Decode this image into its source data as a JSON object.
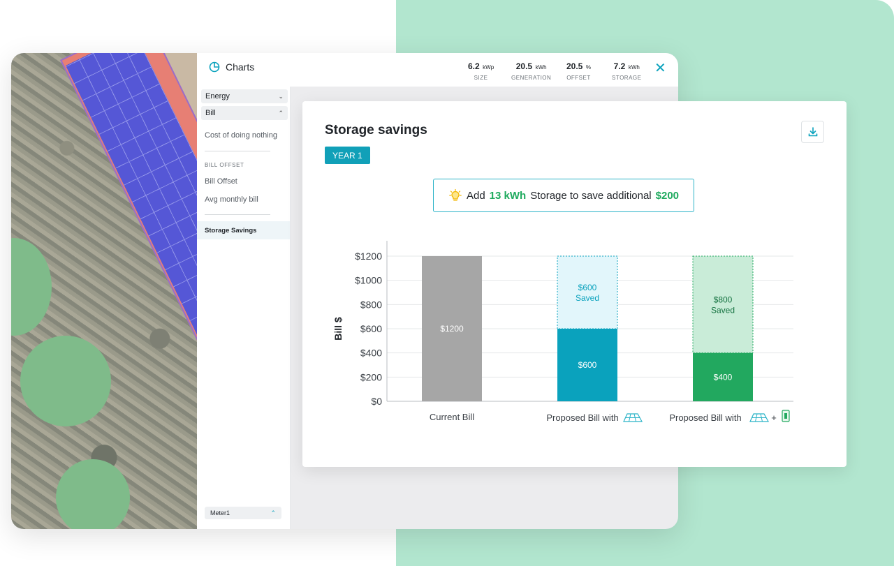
{
  "sidebar": {
    "title": "Charts",
    "sections": [
      {
        "label": "Energy",
        "expanded": false
      },
      {
        "label": "Bill",
        "expanded": true
      }
    ],
    "items": {
      "cost_of_doing_nothing": "Cost of doing nothing",
      "bill_offset_header": "BILL OFFSET",
      "bill_offset": "Bill Offset",
      "avg_monthly_bill": "Avg monthly bill",
      "storage_savings": "Storage Savings"
    },
    "meter": "Meter1"
  },
  "stats": [
    {
      "value": "6.2",
      "unit": "kWp",
      "label": "SIZE"
    },
    {
      "value": "20.5",
      "unit": "kWh",
      "label": "GENERATION"
    },
    {
      "value": "20.5",
      "unit": "%",
      "label": "OFFSET"
    },
    {
      "value": "7.2",
      "unit": "kWh",
      "label": "STORAGE"
    }
  ],
  "card": {
    "title": "Storage savings",
    "badge": "YEAR 1",
    "tip": {
      "prefix": "Add",
      "storage": "13 kWh",
      "middle": "Storage to save additional",
      "amount": "$200"
    }
  },
  "colors": {
    "accent": "#11a0b8",
    "green": "#1faa5e",
    "current_bill": "#a6a6a6",
    "solar_bill": "#0aa2bd",
    "solar_saved": "#e2f6fb",
    "storage_bill": "#22a85f",
    "storage_saved": "#c9ecd8"
  },
  "chart_data": {
    "type": "bar",
    "ylabel": "Bill $",
    "ylim": [
      0,
      1200
    ],
    "y_ticks": [
      "$0",
      "$200",
      "$400",
      "$600",
      "$800",
      "$1000",
      "$1200"
    ],
    "y_tick_values": [
      0,
      200,
      400,
      600,
      800,
      1000,
      1200
    ],
    "categories": [
      {
        "label": "Current Bill",
        "icons": []
      },
      {
        "label": "Proposed Bill with",
        "icons": [
          "solar-panel-icon"
        ]
      },
      {
        "label": "Proposed Bill with",
        "icons": [
          "solar-panel-icon",
          "battery-icon"
        ]
      }
    ],
    "series": [
      {
        "name": "bill",
        "values": [
          1200,
          600,
          400
        ],
        "labels": [
          "$1200",
          "$600",
          "$400"
        ]
      },
      {
        "name": "saved",
        "values": [
          0,
          600,
          800
        ],
        "labels": [
          "",
          "$600",
          "$800"
        ],
        "sublabel": "Saved"
      }
    ]
  }
}
